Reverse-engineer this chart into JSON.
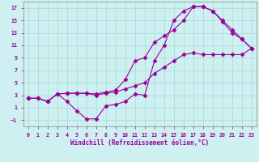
{
  "xlabel": "Windchill (Refroidissement éolien,°C)",
  "bg_color": "#cff0f0",
  "grid_color": "#aadddd",
  "line_color": "#990099",
  "xlim": [
    -0.5,
    23.5
  ],
  "ylim": [
    -2.0,
    18.0
  ],
  "xticks": [
    0,
    1,
    2,
    3,
    4,
    5,
    6,
    7,
    8,
    9,
    10,
    11,
    12,
    13,
    14,
    15,
    16,
    17,
    18,
    19,
    20,
    21,
    22,
    23
  ],
  "yticks": [
    -1,
    1,
    3,
    5,
    7,
    9,
    11,
    13,
    15,
    17
  ],
  "line1_x": [
    0,
    1,
    2,
    3,
    4,
    5,
    6,
    7,
    8,
    9,
    10,
    11,
    12,
    13,
    14,
    15,
    16,
    17,
    18,
    19,
    20,
    21,
    22,
    23
  ],
  "line1_y": [
    2.5,
    2.5,
    2.0,
    3.2,
    2.0,
    0.5,
    -0.8,
    -0.8,
    1.3,
    1.5,
    2.0,
    3.2,
    3.0,
    8.5,
    11.0,
    15.0,
    16.5,
    17.2,
    17.2,
    16.5,
    15.0,
    13.5,
    12.0,
    10.5
  ],
  "line2_x": [
    0,
    1,
    2,
    3,
    4,
    5,
    6,
    7,
    8,
    9,
    10,
    11,
    12,
    13,
    14,
    15,
    16,
    17,
    18,
    19,
    20,
    21,
    22,
    23
  ],
  "line2_y": [
    2.5,
    2.5,
    2.0,
    3.2,
    3.3,
    3.3,
    3.3,
    3.2,
    3.5,
    3.8,
    5.5,
    8.5,
    9.0,
    11.5,
    12.5,
    13.5,
    15.0,
    17.2,
    17.2,
    16.5,
    14.8,
    13.0,
    12.0,
    10.5
  ],
  "line3_x": [
    0,
    1,
    2,
    3,
    4,
    5,
    6,
    7,
    8,
    9,
    10,
    11,
    12,
    13,
    14,
    15,
    16,
    17,
    18,
    19,
    20,
    21,
    22,
    23
  ],
  "line3_y": [
    2.5,
    2.5,
    2.0,
    3.2,
    3.3,
    3.3,
    3.3,
    3.0,
    3.3,
    3.5,
    4.0,
    4.5,
    5.0,
    6.5,
    7.5,
    8.5,
    9.5,
    9.8,
    9.5,
    9.5,
    9.5,
    9.5,
    9.5,
    10.5
  ]
}
